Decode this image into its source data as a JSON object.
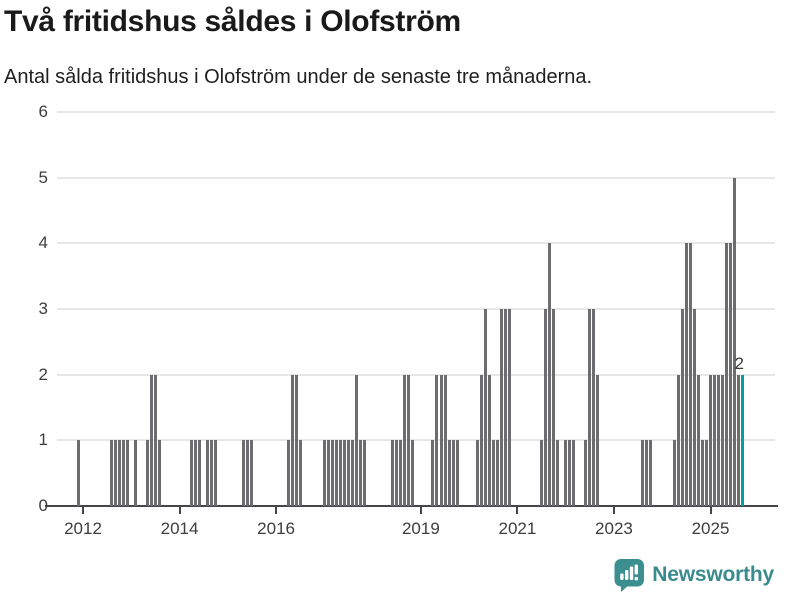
{
  "header": {
    "title": "Två fritidshus såldes i Olofström",
    "subtitle": "Antal sålda fritidshus i Olofström under de senaste tre månaderna."
  },
  "chart_data": {
    "type": "bar",
    "title": "Två fritidshus såldes i Olofström",
    "subtitle": "Antal sålda fritidshus i Olofström under de senaste tre månaderna.",
    "xlabel": "",
    "ylabel": "",
    "ylim": [
      0,
      6
    ],
    "yticks": [
      0,
      1,
      2,
      3,
      4,
      5,
      6
    ],
    "xtick_years": [
      2012,
      2014,
      2016,
      2019,
      2021,
      2023,
      2025
    ],
    "x_domain_years": [
      2011.46,
      2026.34
    ],
    "grid": true,
    "legend": "none",
    "bar_color": "#6c6c71",
    "highlight_color": "#00a19d",
    "last_value_label": "2",
    "bars": [
      {
        "m": "2011-12",
        "v": 1
      },
      {
        "m": "2012-08",
        "v": 1
      },
      {
        "m": "2012-09",
        "v": 1
      },
      {
        "m": "2012-10",
        "v": 1
      },
      {
        "m": "2012-11",
        "v": 1
      },
      {
        "m": "2012-12",
        "v": 1
      },
      {
        "m": "2013-02",
        "v": 1
      },
      {
        "m": "2013-05",
        "v": 1
      },
      {
        "m": "2013-06",
        "v": 2
      },
      {
        "m": "2013-07",
        "v": 2
      },
      {
        "m": "2013-08",
        "v": 1
      },
      {
        "m": "2014-04",
        "v": 1
      },
      {
        "m": "2014-05",
        "v": 1
      },
      {
        "m": "2014-06",
        "v": 1
      },
      {
        "m": "2014-08",
        "v": 1
      },
      {
        "m": "2014-09",
        "v": 1
      },
      {
        "m": "2014-10",
        "v": 1
      },
      {
        "m": "2015-05",
        "v": 1
      },
      {
        "m": "2015-06",
        "v": 1
      },
      {
        "m": "2015-07",
        "v": 1
      },
      {
        "m": "2016-04",
        "v": 1
      },
      {
        "m": "2016-05",
        "v": 2
      },
      {
        "m": "2016-06",
        "v": 2
      },
      {
        "m": "2016-07",
        "v": 1
      },
      {
        "m": "2017-01",
        "v": 1
      },
      {
        "m": "2017-02",
        "v": 1
      },
      {
        "m": "2017-03",
        "v": 1
      },
      {
        "m": "2017-04",
        "v": 1
      },
      {
        "m": "2017-05",
        "v": 1
      },
      {
        "m": "2017-06",
        "v": 1
      },
      {
        "m": "2017-07",
        "v": 1
      },
      {
        "m": "2017-08",
        "v": 1
      },
      {
        "m": "2017-09",
        "v": 2
      },
      {
        "m": "2017-10",
        "v": 1
      },
      {
        "m": "2017-11",
        "v": 1
      },
      {
        "m": "2018-06",
        "v": 1
      },
      {
        "m": "2018-07",
        "v": 1
      },
      {
        "m": "2018-08",
        "v": 1
      },
      {
        "m": "2018-09",
        "v": 2
      },
      {
        "m": "2018-10",
        "v": 2
      },
      {
        "m": "2018-11",
        "v": 1
      },
      {
        "m": "2019-04",
        "v": 1
      },
      {
        "m": "2019-05",
        "v": 2
      },
      {
        "m": "2019-06",
        "v": 2
      },
      {
        "m": "2019-07",
        "v": 2
      },
      {
        "m": "2019-08",
        "v": 1
      },
      {
        "m": "2019-09",
        "v": 1
      },
      {
        "m": "2019-10",
        "v": 1
      },
      {
        "m": "2020-03",
        "v": 1
      },
      {
        "m": "2020-04",
        "v": 2
      },
      {
        "m": "2020-05",
        "v": 3
      },
      {
        "m": "2020-06",
        "v": 2
      },
      {
        "m": "2020-07",
        "v": 1
      },
      {
        "m": "2020-08",
        "v": 1
      },
      {
        "m": "2020-09",
        "v": 3
      },
      {
        "m": "2020-10",
        "v": 3
      },
      {
        "m": "2020-11",
        "v": 3
      },
      {
        "m": "2021-07",
        "v": 1
      },
      {
        "m": "2021-08",
        "v": 3
      },
      {
        "m": "2021-09",
        "v": 4
      },
      {
        "m": "2021-10",
        "v": 3
      },
      {
        "m": "2021-11",
        "v": 1
      },
      {
        "m": "2022-01",
        "v": 1
      },
      {
        "m": "2022-02",
        "v": 1
      },
      {
        "m": "2022-03",
        "v": 1
      },
      {
        "m": "2022-06",
        "v": 1
      },
      {
        "m": "2022-07",
        "v": 3
      },
      {
        "m": "2022-08",
        "v": 3
      },
      {
        "m": "2022-09",
        "v": 2
      },
      {
        "m": "2023-08",
        "v": 1
      },
      {
        "m": "2023-09",
        "v": 1
      },
      {
        "m": "2023-10",
        "v": 1
      },
      {
        "m": "2024-04",
        "v": 1
      },
      {
        "m": "2024-05",
        "v": 2
      },
      {
        "m": "2024-06",
        "v": 3
      },
      {
        "m": "2024-07",
        "v": 4
      },
      {
        "m": "2024-08",
        "v": 4
      },
      {
        "m": "2024-09",
        "v": 3
      },
      {
        "m": "2024-10",
        "v": 2
      },
      {
        "m": "2024-11",
        "v": 1
      },
      {
        "m": "2024-12",
        "v": 1
      },
      {
        "m": "2025-01",
        "v": 2
      },
      {
        "m": "2025-02",
        "v": 2
      },
      {
        "m": "2025-03",
        "v": 2
      },
      {
        "m": "2025-04",
        "v": 2
      },
      {
        "m": "2025-05",
        "v": 4
      },
      {
        "m": "2025-06",
        "v": 4
      },
      {
        "m": "2025-07",
        "v": 5
      },
      {
        "m": "2025-08",
        "v": 2
      },
      {
        "m": "2025-09",
        "v": 2,
        "highlight": true
      }
    ]
  },
  "footer": {
    "brand": "Newsworthy",
    "brand_color": "#3a8b8d",
    "icon_color": "#3b8f8e",
    "logo_icon": "bar-chart-speech-bubble-icon"
  }
}
